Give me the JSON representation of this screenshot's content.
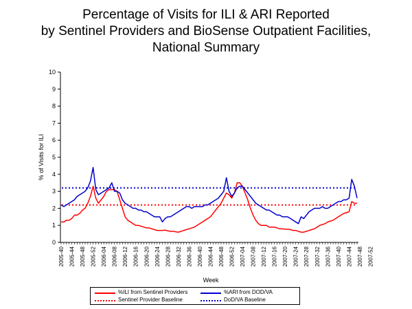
{
  "chart_data": {
    "type": "line",
    "title_lines": [
      "Percentage of Visits for ILI & ARI Reported",
      "by Sentinel Providers and BioSense Outpatient Facilities,",
      "National Summary"
    ],
    "xlabel": "Week",
    "ylabel": "% of Visits for ILI",
    "ylim": [
      0,
      10
    ],
    "yticks": [
      0,
      1,
      2,
      3,
      4,
      5,
      6,
      7,
      8,
      9,
      10
    ],
    "grid": false,
    "x_tick_labels": [
      "2005-40",
      "2005-44",
      "2005-48",
      "2005-52",
      "2006-04",
      "2006-08",
      "2006-12",
      "2006-16",
      "2006-20",
      "2006-24",
      "2006-28",
      "2006-32",
      "2006-36",
      "2006-40",
      "2006-44",
      "2006-48",
      "2006-52",
      "2007-04",
      "2007-08",
      "2007-12",
      "2007-16",
      "2007-20",
      "2007-24",
      "2007-28",
      "2007-32",
      "2007-36",
      "2007-40",
      "2007-44",
      "2007-48",
      "2007-52"
    ],
    "x_tick_step_weeks": 4,
    "series": [
      {
        "name": "%ILI from Sentinel Providers",
        "color": "#ff0000",
        "style": "solid",
        "values": [
          1.2,
          1.2,
          1.3,
          1.3,
          1.4,
          1.6,
          1.6,
          1.7,
          1.9,
          2.0,
          2.3,
          2.7,
          3.3,
          2.6,
          2.3,
          2.5,
          2.7,
          3.0,
          3.1,
          3.1,
          3.1,
          3.0,
          2.5,
          2.0,
          1.5,
          1.3,
          1.2,
          1.1,
          1.0,
          1.0,
          0.95,
          0.9,
          0.85,
          0.85,
          0.8,
          0.75,
          0.7,
          0.7,
          0.7,
          0.72,
          0.68,
          0.65,
          0.65,
          0.62,
          0.6,
          0.65,
          0.7,
          0.75,
          0.8,
          0.85,
          0.9,
          1.0,
          1.1,
          1.2,
          1.3,
          1.4,
          1.5,
          1.7,
          1.9,
          2.1,
          2.3,
          2.6,
          2.9,
          2.8,
          2.6,
          2.9,
          3.5,
          3.5,
          3.3,
          2.9,
          2.5,
          2.0,
          1.6,
          1.3,
          1.1,
          1.0,
          1.0,
          1.0,
          0.9,
          0.9,
          0.9,
          0.85,
          0.8,
          0.8,
          0.78,
          0.78,
          0.75,
          0.7,
          0.7,
          0.65,
          0.6,
          0.6,
          0.65,
          0.7,
          0.75,
          0.8,
          0.9,
          1.0,
          1.05,
          1.1,
          1.2,
          1.25,
          1.3,
          1.4,
          1.5,
          1.6,
          1.7,
          1.75,
          1.8,
          2.4,
          2.3,
          2.3
        ]
      },
      {
        "name": "%ARI from DOD/VA",
        "color": "#0000cc",
        "style": "solid",
        "values": [
          2.2,
          2.1,
          2.2,
          2.3,
          2.4,
          2.5,
          2.7,
          2.8,
          2.9,
          3.0,
          3.2,
          3.6,
          4.4,
          3.1,
          2.8,
          2.9,
          3.0,
          3.1,
          3.2,
          3.5,
          3.0,
          3.0,
          2.9,
          2.5,
          2.3,
          2.2,
          2.1,
          2.0,
          2.0,
          1.9,
          1.9,
          1.8,
          1.8,
          1.7,
          1.6,
          1.5,
          1.5,
          1.5,
          1.2,
          1.4,
          1.5,
          1.5,
          1.6,
          1.7,
          1.8,
          1.9,
          2.0,
          2.1,
          2.1,
          2.0,
          2.1,
          2.1,
          2.1,
          2.1,
          2.2,
          2.2,
          2.3,
          2.4,
          2.5,
          2.6,
          2.8,
          3.0,
          3.8,
          3.0,
          2.7,
          2.9,
          3.2,
          3.3,
          3.3,
          3.1,
          2.9,
          2.7,
          2.5,
          2.3,
          2.2,
          2.1,
          2.0,
          1.9,
          1.9,
          1.8,
          1.7,
          1.6,
          1.6,
          1.5,
          1.5,
          1.5,
          1.4,
          1.3,
          1.2,
          1.1,
          1.5,
          1.4,
          1.6,
          1.8,
          1.9,
          2.0,
          2.0,
          2.0,
          2.1,
          2.0,
          2.0,
          2.1,
          2.2,
          2.3,
          2.4,
          2.4,
          2.5,
          2.5,
          2.6,
          3.7,
          3.3,
          2.6
        ]
      },
      {
        "name": "Sentinel Provider Baseline",
        "color": "#ff0000",
        "style": "dotted",
        "constant": 2.2
      },
      {
        "name": "DoD/VA Baseline",
        "color": "#0000cc",
        "style": "dotted",
        "constant": 3.2
      }
    ]
  }
}
